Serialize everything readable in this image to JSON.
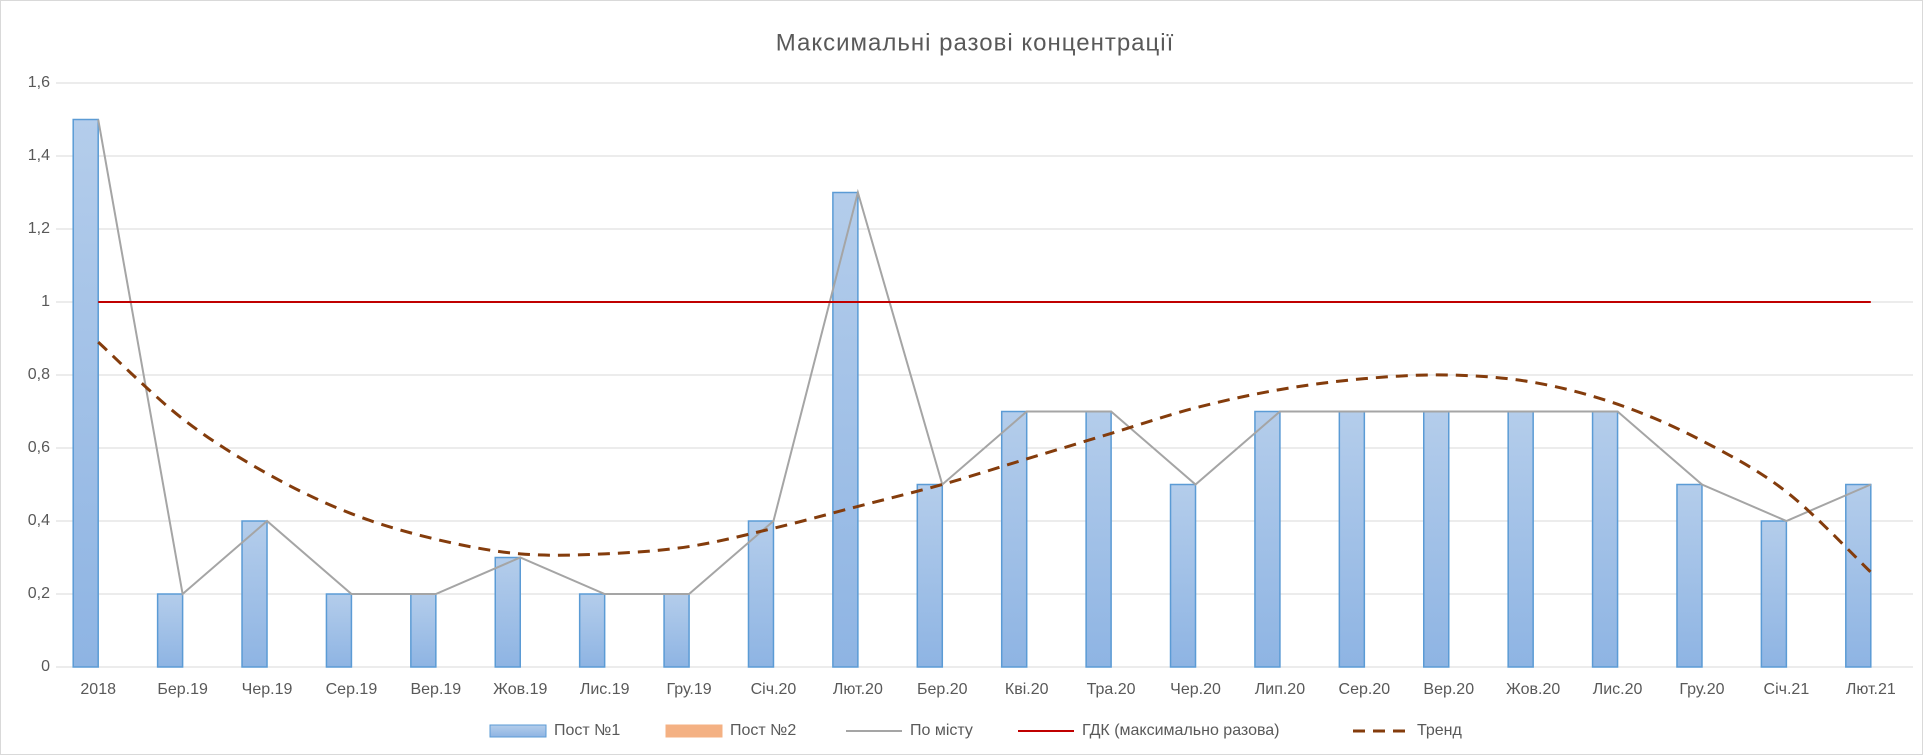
{
  "chart_data": {
    "type": "bar",
    "title": "Максимальні разові концентрації",
    "categories": [
      "2018",
      "Бер.19",
      "Чер.19",
      "Сер.19",
      "Вер.19",
      "Жов.19",
      "Лис.19",
      "Гру.19",
      "Січ.20",
      "Лют.20",
      "Бер.20",
      "Кві.20",
      "Тра.20",
      "Чер.20",
      "Лип.20",
      "Сер.20",
      "Вер.20",
      "Жов.20",
      "Лис.20",
      "Гру.20",
      "Січ.21",
      "Лют.21"
    ],
    "series": [
      {
        "name": "Пост №1",
        "kind": "bar",
        "color": "#5b9bd5",
        "values": [
          1.5,
          0.2,
          0.4,
          0.2,
          0.2,
          0.3,
          0.2,
          0.2,
          0.4,
          1.3,
          0.5,
          0.7,
          0.7,
          0.5,
          0.7,
          0.7,
          0.7,
          0.7,
          0.7,
          0.5,
          0.4,
          0.5
        ]
      },
      {
        "name": "Пост №2",
        "kind": "bar",
        "color": "#f4b183",
        "values": [
          null,
          null,
          null,
          null,
          null,
          null,
          null,
          null,
          null,
          null,
          null,
          null,
          null,
          null,
          null,
          null,
          null,
          null,
          null,
          null,
          null,
          null
        ]
      },
      {
        "name": "По місту",
        "kind": "line",
        "color": "#a5a5a5",
        "values": [
          1.5,
          0.2,
          0.4,
          0.2,
          0.2,
          0.3,
          0.2,
          0.2,
          0.4,
          1.3,
          0.5,
          0.7,
          0.7,
          0.5,
          0.7,
          0.7,
          0.7,
          0.7,
          0.7,
          0.5,
          0.4,
          0.5
        ]
      },
      {
        "name": "ГДК (максимально разова)",
        "kind": "line",
        "color": "#c00000",
        "values": [
          1,
          1,
          1,
          1,
          1,
          1,
          1,
          1,
          1,
          1,
          1,
          1,
          1,
          1,
          1,
          1,
          1,
          1,
          1,
          1,
          1,
          1
        ]
      },
      {
        "name": "Тренд",
        "kind": "line",
        "dashed": true,
        "smooth": true,
        "color": "#843c0c",
        "values": [
          0.89,
          0.68,
          0.53,
          0.42,
          0.35,
          0.31,
          0.31,
          0.33,
          0.38,
          0.44,
          0.5,
          0.57,
          0.64,
          0.71,
          0.76,
          0.79,
          0.8,
          0.78,
          0.72,
          0.62,
          0.48,
          0.26
        ]
      }
    ],
    "ylim": [
      0,
      1.6
    ],
    "yticks": [
      0,
      {
        "value": 0.2,
        "label": "0,2"
      },
      {
        "value": 0.4,
        "label": "0,4"
      },
      {
        "value": 0.6,
        "label": "0,6"
      },
      {
        "value": 0.8,
        "label": "0,8"
      },
      1,
      {
        "value": 1.2,
        "label": "1,2"
      },
      {
        "value": 1.4,
        "label": "1,4"
      },
      {
        "value": 1.6,
        "label": "1,6"
      }
    ],
    "grid": true,
    "legend": "bottom"
  }
}
